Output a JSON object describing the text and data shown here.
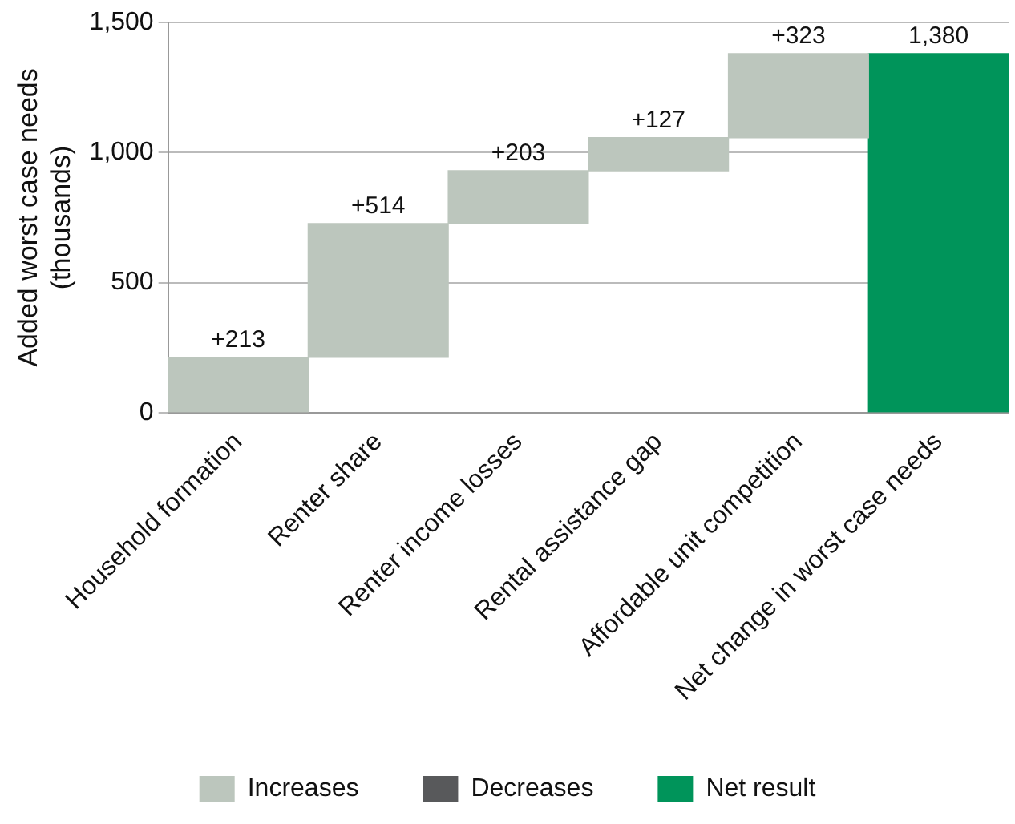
{
  "chart_data": {
    "type": "bar",
    "ylabel": "Added worst case needs\n(thousands)",
    "categories": [
      "Household formation",
      "Renter share",
      "Renter income losses",
      "Rental assistance gap",
      "Affordable unit competition",
      "Net change in worst case needs"
    ],
    "series": [
      {
        "name": "Increases",
        "color": "#bcc6bd",
        "values": [
          213,
          514,
          203,
          127,
          323,
          null
        ],
        "base": [
          0,
          213,
          727,
          930,
          1057,
          null
        ],
        "value_labels": [
          "+213",
          "+514",
          "+203",
          "+127",
          "+323",
          null
        ]
      },
      {
        "name": "Decreases",
        "color": "#58595b",
        "values": [
          null,
          null,
          null,
          null,
          null,
          null
        ],
        "base": [
          null,
          null,
          null,
          null,
          null,
          null
        ]
      },
      {
        "name": "Net result",
        "color": "#00945a",
        "values": [
          null,
          null,
          null,
          null,
          null,
          1380
        ],
        "base": [
          null,
          null,
          null,
          null,
          null,
          0
        ],
        "value_labels": [
          null,
          null,
          null,
          null,
          null,
          "1,380"
        ]
      }
    ],
    "ylim": [
      0,
      1500
    ],
    "yticks": [
      0,
      500,
      {
        "value": 1000,
        "label": "1,000"
      },
      {
        "value": 1500,
        "label": "1,500"
      }
    ],
    "grid": "y",
    "legend": "bottom"
  }
}
